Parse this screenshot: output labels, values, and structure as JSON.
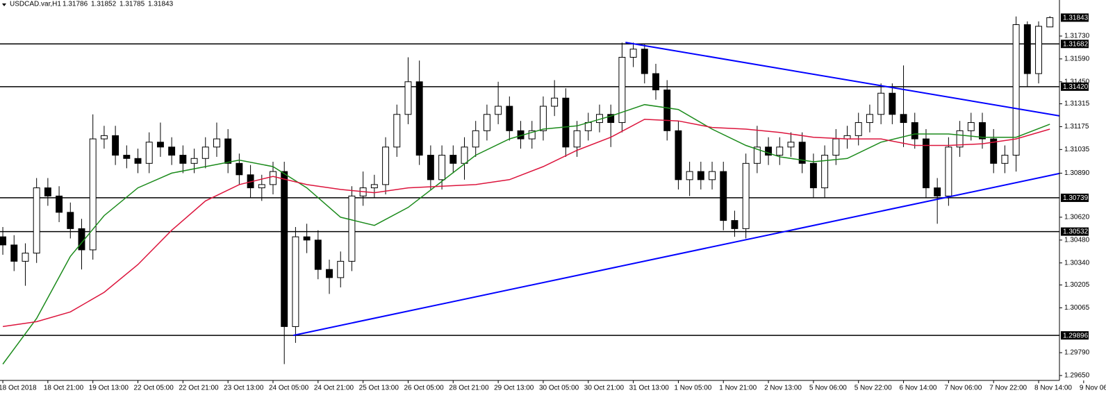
{
  "chart_data": {
    "type": "candlestick",
    "symbol": "USDCAD.var,H1",
    "open": [
      1.305,
      1.3045,
      1.3035,
      1.304,
      1.308,
      1.3075,
      1.3065,
      1.3055,
      1.3042,
      1.311,
      1.3112,
      1.31,
      1.3098,
      1.3095,
      1.3108,
      1.3105,
      1.31,
      1.3095,
      1.3098,
      1.3105,
      1.311,
      1.3095,
      1.3088,
      1.308,
      1.3082,
      1.309,
      1.2995,
      1.305,
      1.3048,
      1.303,
      1.3025,
      1.3035,
      1.3075,
      1.308,
      1.3082,
      1.3105,
      1.3125,
      1.3145,
      1.31,
      1.3085,
      1.31,
      1.3095,
      1.3105,
      1.3115,
      1.3125,
      1.313,
      1.3115,
      1.311,
      1.3115,
      1.313,
      1.3135,
      1.3105,
      1.3115,
      1.312,
      1.3125,
      1.312,
      1.316,
      1.3165,
      1.315,
      1.314,
      1.3115,
      1.3085,
      1.309,
      1.3085,
      1.309,
      1.306,
      1.3055,
      1.3095,
      1.3105,
      1.31,
      1.3105,
      1.3108,
      1.3095,
      1.308,
      1.31,
      1.311,
      1.3112,
      1.312,
      1.3125,
      1.3138,
      1.3125,
      1.312,
      1.311,
      1.308,
      1.3075,
      1.3105,
      1.3115,
      1.312,
      1.311,
      1.3095,
      1.31,
      1.318,
      1.315,
      1.31786
    ],
    "high": [
      1.3056,
      1.3051,
      1.3046,
      1.3086,
      1.3086,
      1.3081,
      1.3071,
      1.3061,
      1.3125,
      1.3118,
      1.3118,
      1.3106,
      1.3104,
      1.3114,
      1.312,
      1.3111,
      1.3106,
      1.3104,
      1.3111,
      1.312,
      1.3116,
      1.3101,
      1.3094,
      1.3088,
      1.3096,
      1.3096,
      1.3056,
      1.3058,
      1.3054,
      1.3036,
      1.3041,
      1.3081,
      1.309,
      1.3088,
      1.3111,
      1.3131,
      1.316,
      1.3158,
      1.3106,
      1.3106,
      1.3106,
      1.3111,
      1.3121,
      1.3131,
      1.3145,
      1.3136,
      1.3121,
      1.3121,
      1.3136,
      1.3146,
      1.3141,
      1.3121,
      1.3126,
      1.3131,
      1.3131,
      1.3169,
      1.3169,
      1.3168,
      1.3156,
      1.3146,
      1.3121,
      1.3096,
      1.3096,
      1.3096,
      1.3096,
      1.3066,
      1.3101,
      1.3118,
      1.3111,
      1.3111,
      1.3114,
      1.3114,
      1.3101,
      1.3106,
      1.3116,
      1.3118,
      1.3126,
      1.3131,
      1.3144,
      1.3144,
      1.3155,
      1.3126,
      1.3116,
      1.3086,
      1.3111,
      1.3121,
      1.3126,
      1.3126,
      1.3116,
      1.3106,
      1.3185,
      1.3182,
      1.3182,
      1.31852
    ],
    "low": [
      1.3039,
      1.3029,
      1.302,
      1.3034,
      1.3069,
      1.3059,
      1.3049,
      1.303,
      1.3036,
      1.3104,
      1.3094,
      1.3092,
      1.3089,
      1.3089,
      1.3099,
      1.3094,
      1.3089,
      1.3089,
      1.3092,
      1.3099,
      1.3089,
      1.3082,
      1.3074,
      1.3072,
      1.3076,
      1.2972,
      1.2985,
      1.304,
      1.3024,
      1.3015,
      1.3019,
      1.3029,
      1.3069,
      1.3074,
      1.3076,
      1.3099,
      1.3119,
      1.3094,
      1.3079,
      1.3079,
      1.3089,
      1.3085,
      1.3099,
      1.3109,
      1.3119,
      1.3109,
      1.3104,
      1.3104,
      1.3109,
      1.3124,
      1.3099,
      1.3099,
      1.3109,
      1.3114,
      1.3105,
      1.3114,
      1.3154,
      1.3144,
      1.3134,
      1.3109,
      1.3079,
      1.3075,
      1.3079,
      1.3079,
      1.3054,
      1.305,
      1.3049,
      1.3089,
      1.3094,
      1.3094,
      1.3099,
      1.3089,
      1.3074,
      1.3074,
      1.3094,
      1.3104,
      1.3106,
      1.3114,
      1.3119,
      1.3119,
      1.3105,
      1.3104,
      1.3074,
      1.3058,
      1.3069,
      1.3099,
      1.3109,
      1.3104,
      1.3089,
      1.3089,
      1.309,
      1.3142,
      1.3144,
      1.31785
    ],
    "close": [
      1.3045,
      1.3035,
      1.304,
      1.308,
      1.3075,
      1.3065,
      1.3055,
      1.3042,
      1.311,
      1.3112,
      1.31,
      1.3098,
      1.3095,
      1.3108,
      1.3105,
      1.31,
      1.3095,
      1.3098,
      1.3105,
      1.311,
      1.3095,
      1.3088,
      1.308,
      1.3082,
      1.309,
      1.2995,
      1.305,
      1.3048,
      1.303,
      1.3025,
      1.3035,
      1.3075,
      1.308,
      1.3082,
      1.3105,
      1.3125,
      1.3145,
      1.31,
      1.3085,
      1.31,
      1.3095,
      1.3105,
      1.3115,
      1.3125,
      1.313,
      1.3115,
      1.311,
      1.3115,
      1.313,
      1.3135,
      1.3105,
      1.3115,
      1.312,
      1.3125,
      1.312,
      1.316,
      1.3165,
      1.315,
      1.314,
      1.3115,
      1.3085,
      1.309,
      1.3085,
      1.309,
      1.306,
      1.3055,
      1.3095,
      1.3105,
      1.31,
      1.3105,
      1.3108,
      1.3095,
      1.308,
      1.31,
      1.311,
      1.3112,
      1.312,
      1.3125,
      1.3138,
      1.3125,
      1.312,
      1.311,
      1.308,
      1.3075,
      1.3105,
      1.3115,
      1.312,
      1.311,
      1.3095,
      1.31,
      1.318,
      1.315,
      1.3179,
      1.31843
    ],
    "up_color": "#ffffff",
    "down_color": "#000000",
    "wick_color": "#000000",
    "xlim": [
      -0.25,
      93.85
    ],
    "ylim": [
      1.2962,
      1.31951
    ],
    "xticks": [
      {
        "value": 0,
        "label": "18 Oct 2018"
      },
      {
        "value": 4,
        "label": "18 Oct 21:00"
      },
      {
        "value": 8,
        "label": "19 Oct 13:00"
      },
      {
        "value": 12,
        "label": "22 Oct 05:00"
      },
      {
        "value": 16,
        "label": "22 Oct 21:00"
      },
      {
        "value": 20,
        "label": "23 Oct 13:00"
      },
      {
        "value": 24,
        "label": "24 Oct 05:00"
      },
      {
        "value": 28,
        "label": "24 Oct 21:00"
      },
      {
        "value": 32,
        "label": "25 Oct 13:00"
      },
      {
        "value": 36,
        "label": "26 Oct 05:00"
      },
      {
        "value": 40,
        "label": "28 Oct 21:00"
      },
      {
        "value": 44,
        "label": "29 Oct 13:00"
      },
      {
        "value": 48,
        "label": "30 Oct 05:00"
      },
      {
        "value": 52,
        "label": "30 Oct 21:00"
      },
      {
        "value": 56,
        "label": "31 Oct 13:00"
      },
      {
        "value": 60,
        "label": "1 Nov 05:00"
      },
      {
        "value": 64,
        "label": "1 Nov 21:00"
      },
      {
        "value": 68,
        "label": "2 Nov 13:00"
      },
      {
        "value": 72,
        "label": "5 Nov 06:00"
      },
      {
        "value": 76,
        "label": "5 Nov 22:00"
      },
      {
        "value": 80,
        "label": "6 Nov 14:00"
      },
      {
        "value": 84,
        "label": "7 Nov 06:00"
      },
      {
        "value": 88,
        "label": "7 Nov 22:00"
      },
      {
        "value": 92,
        "label": "8 Nov 14:00"
      },
      {
        "value": 96,
        "label": "9 Nov 06:00"
      }
    ],
    "yticks": [
      {
        "value": 1.3173,
        "label": "1.31730"
      },
      {
        "value": 1.3159,
        "label": "1.31590"
      },
      {
        "value": 1.3145,
        "label": "1.31450"
      },
      1.31315,
      1.31175,
      1.31035,
      {
        "value": 1.3089,
        "label": "1.30890"
      },
      {
        "value": 1.3062,
        "label": "1.30620"
      },
      {
        "value": 1.3048,
        "label": "1.30480"
      },
      {
        "value": 1.3034,
        "label": "1.30340"
      },
      1.30205,
      1.30065,
      {
        "value": 1.2979,
        "label": "1.29790"
      },
      {
        "value": 1.2965,
        "label": "1.29650"
      }
    ],
    "levels": [
      1.31682,
      {
        "value": 1.3142,
        "label": "1.31420"
      },
      1.30739,
      1.30532,
      1.29896
    ],
    "level_color": "#000000",
    "moving_averages": [
      {
        "color": "#1a8a1a",
        "x": [
          0,
          3,
          6,
          9,
          12,
          15,
          18,
          21,
          24,
          27,
          30,
          33,
          36,
          39,
          42,
          45,
          48,
          51,
          54,
          57,
          60,
          63,
          66,
          69,
          72,
          75,
          78,
          81,
          84,
          87,
          90,
          93
        ],
        "values": [
          1.2972,
          1.3,
          1.3038,
          1.3063,
          1.308,
          1.3089,
          1.3093,
          1.3097,
          1.3093,
          1.308,
          1.3062,
          1.3057,
          1.3068,
          1.3084,
          1.31,
          1.311,
          1.3116,
          1.3118,
          1.3124,
          1.3131,
          1.3128,
          1.3116,
          1.3106,
          1.3099,
          1.3096,
          1.3098,
          1.3108,
          1.3113,
          1.3113,
          1.3111,
          1.3111,
          1.3119
        ]
      },
      {
        "color": "#dc143c",
        "x": [
          0,
          3,
          6,
          9,
          12,
          15,
          18,
          21,
          24,
          27,
          30,
          33,
          36,
          39,
          42,
          45,
          48,
          51,
          54,
          57,
          60,
          63,
          66,
          69,
          72,
          75,
          78,
          81,
          84,
          87,
          90,
          93
        ],
        "values": [
          1.2995,
          1.2998,
          1.3004,
          1.3016,
          1.3033,
          1.3054,
          1.3072,
          1.3082,
          1.3087,
          1.3082,
          1.3079,
          1.3077,
          1.308,
          1.3081,
          1.3082,
          1.3085,
          1.3093,
          1.3103,
          1.3111,
          1.3122,
          1.3121,
          1.3117,
          1.3116,
          1.3114,
          1.3111,
          1.311,
          1.311,
          1.3106,
          1.3106,
          1.3107,
          1.311,
          1.3116
        ]
      }
    ],
    "trendlines": [
      {
        "color": "#0000ff",
        "x": [
          55.3,
          93.85
        ],
        "values": [
          1.31691,
          1.31241
        ]
      },
      {
        "color": "#0000ff",
        "x": [
          25.8,
          93.85
        ],
        "values": [
          1.29896,
          1.30888
        ]
      }
    ]
  }
}
